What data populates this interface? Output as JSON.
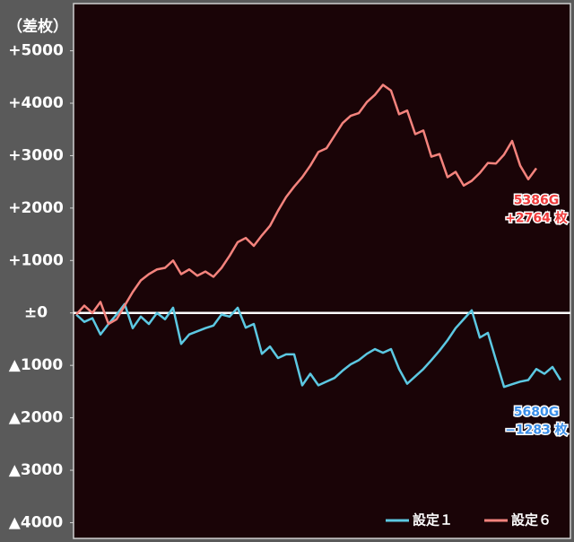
{
  "chart_data": {
    "type": "line",
    "y_label": "（差枚）",
    "ylim": [
      -4300,
      5900
    ],
    "yticks": [
      {
        "value": 5000,
        "label": "+5000"
      },
      {
        "value": 4000,
        "label": "+4000"
      },
      {
        "value": 3000,
        "label": "+3000"
      },
      {
        "value": 2000,
        "label": "+2000"
      },
      {
        "value": 1000,
        "label": "+1000"
      },
      {
        "value": 0,
        "label": "±0"
      },
      {
        "value": -1000,
        "label": "▲1000"
      },
      {
        "value": -2000,
        "label": "▲2000"
      },
      {
        "value": -3000,
        "label": "▲3000"
      },
      {
        "value": -4000,
        "label": "▲4000"
      }
    ],
    "zero_line": true,
    "legend": "lower right",
    "series": [
      {
        "name": "設定１",
        "color": "#5cc8e2",
        "values": [
          -30,
          -170,
          -100,
          -410,
          -210,
          -30,
          170,
          -290,
          -70,
          -210,
          0,
          -120,
          100,
          -590,
          -410,
          -350,
          -290,
          -240,
          -30,
          -70,
          100,
          -280,
          -210,
          -780,
          -640,
          -860,
          -790,
          -790,
          -1380,
          -1160,
          -1380,
          -1310,
          -1240,
          -1100,
          -980,
          -900,
          -780,
          -690,
          -760,
          -690,
          -1070,
          -1350,
          -1210,
          -1070,
          -900,
          -720,
          -520,
          -290,
          -120,
          50,
          -470,
          -380,
          -900,
          -1410,
          -1360,
          -1310,
          -1280,
          -1070,
          -1160,
          -1030,
          -1280
        ]
      },
      {
        "name": "設定６",
        "color": "#f4837d",
        "values": [
          -30,
          140,
          0,
          210,
          -210,
          -120,
          140,
          400,
          620,
          740,
          830,
          860,
          1000,
          740,
          830,
          710,
          790,
          690,
          860,
          1090,
          1350,
          1430,
          1280,
          1480,
          1660,
          1950,
          2210,
          2410,
          2590,
          2810,
          3070,
          3140,
          3380,
          3620,
          3760,
          3810,
          4020,
          4160,
          4350,
          4240,
          3790,
          3860,
          3410,
          3480,
          2980,
          3030,
          2590,
          2690,
          2430,
          2520,
          2670,
          2860,
          2850,
          3020,
          3280,
          2810,
          2550,
          2760
        ]
      }
    ],
    "annotations": [
      {
        "series": 1,
        "lines": [
          "5386G",
          "+2764 枚"
        ],
        "color": "#ee3a3a"
      },
      {
        "series": 0,
        "lines": [
          "5680G",
          "−1283 枚"
        ],
        "color": "#3a8ee8"
      }
    ]
  }
}
